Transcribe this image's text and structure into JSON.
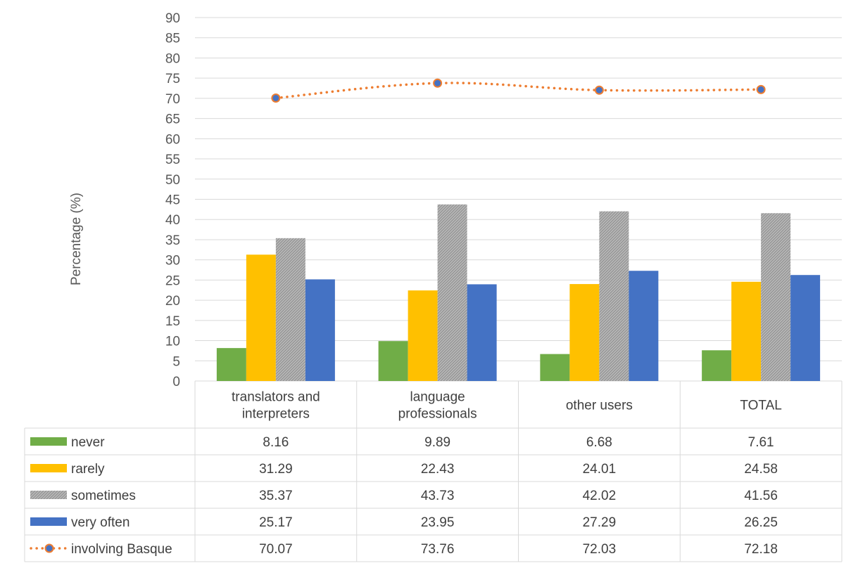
{
  "chart_data": {
    "type": "bar",
    "ylabel": "Percentage (%)",
    "ylim": [
      0,
      90
    ],
    "yticks": [
      0,
      5,
      10,
      15,
      20,
      25,
      30,
      35,
      40,
      45,
      50,
      55,
      60,
      65,
      70,
      75,
      80,
      85,
      90
    ],
    "grid": true,
    "categories": [
      [
        "translators and",
        "interpreters"
      ],
      [
        "language",
        "professionals"
      ],
      [
        "other users"
      ],
      [
        "TOTAL"
      ]
    ],
    "series": [
      {
        "name": "never",
        "kind": "bar",
        "color": "#70ad47",
        "values": [
          8.16,
          9.89,
          6.68,
          7.61
        ],
        "labels": [
          "8.16",
          "9.89",
          "6.68",
          "7.61"
        ]
      },
      {
        "name": "rarely",
        "kind": "bar",
        "color": "#ffc000",
        "values": [
          31.29,
          22.43,
          24.01,
          24.58
        ],
        "labels": [
          "31.29",
          "22.43",
          "24.01",
          "24.58"
        ]
      },
      {
        "name": "sometimes",
        "kind": "bar",
        "color": "#a5a5a5",
        "pattern": "hatched",
        "values": [
          35.37,
          43.73,
          42.02,
          41.56
        ],
        "labels": [
          "35.37",
          "43.73",
          "42.02",
          "41.56"
        ]
      },
      {
        "name": "very often",
        "kind": "bar",
        "color": "#4472c4",
        "values": [
          25.17,
          23.95,
          27.29,
          26.25
        ],
        "labels": [
          "25.17",
          "23.95",
          "27.29",
          "26.25"
        ]
      },
      {
        "name": "involving Basque",
        "kind": "line",
        "color": "#ed7d31",
        "marker_color": "#4472c4",
        "line_style": "dotted",
        "values": [
          70.07,
          73.76,
          72.03,
          72.18
        ],
        "labels": [
          "70.07",
          "73.76",
          "72.03",
          "72.18"
        ]
      }
    ],
    "legend": "data-table"
  }
}
